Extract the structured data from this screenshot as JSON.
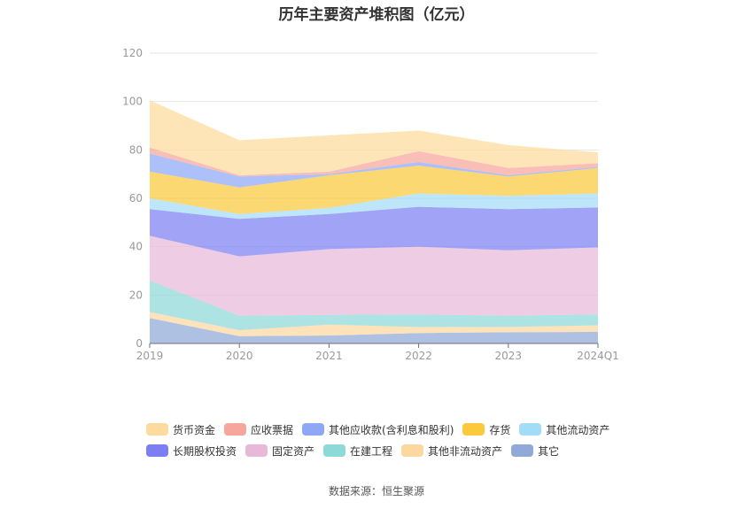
{
  "chart_data": {
    "type": "area",
    "stacked": true,
    "title": "历年主要资产堆积图（亿元）",
    "categories": [
      "2019",
      "2020",
      "2021",
      "2022",
      "2023",
      "2024Q1"
    ],
    "ylim": [
      0,
      120
    ],
    "yticks": [
      0,
      20,
      40,
      60,
      80,
      100,
      120
    ],
    "grid": true,
    "legend_position": "bottom",
    "series": [
      {
        "name": "其它",
        "color": "#8fa9d8",
        "values": [
          10.5,
          3,
          3.3,
          4.3,
          4.6,
          4.8
        ]
      },
      {
        "name": "其他非流动资产",
        "color": "#fdd7a0",
        "values": [
          2.5,
          2.5,
          4.5,
          2.5,
          2.2,
          2.7
        ]
      },
      {
        "name": "在建工程",
        "color": "#8dd8d8",
        "values": [
          13,
          6,
          4,
          5.2,
          4.7,
          4.5
        ]
      },
      {
        "name": "固定资产",
        "color": "#e8b8d8",
        "values": [
          18.5,
          24.5,
          27.2,
          28,
          27,
          27.7
        ]
      },
      {
        "name": "长期股权投资",
        "color": "#7b7ff2",
        "values": [
          11,
          15.5,
          14.5,
          16.5,
          17,
          16.5
        ]
      },
      {
        "name": "其他流动资产",
        "color": "#a3dcf8",
        "values": [
          4.5,
          2,
          2.5,
          5.5,
          5.5,
          5.8
        ]
      },
      {
        "name": "存货",
        "color": "#fbc93c",
        "values": [
          11,
          11,
          13.5,
          11.5,
          8,
          10.5
        ]
      },
      {
        "name": "其他应收款(含利息和股利)",
        "color": "#8ea8f6",
        "values": [
          7.5,
          4.5,
          0.5,
          1.5,
          0.5,
          0.5
        ]
      },
      {
        "name": "应收票据",
        "color": "#f6a69a",
        "values": [
          2.5,
          0.5,
          1,
          4.5,
          3,
          1.5
        ]
      },
      {
        "name": "货币资金",
        "color": "#fedb9c",
        "values": [
          19.5,
          14.5,
          15,
          8.5,
          9.5,
          4.5
        ]
      }
    ]
  },
  "legend_rows": [
    [
      {
        "label": "货币资金",
        "color": "#fedb9c"
      },
      {
        "label": "应收票据",
        "color": "#f6a69a"
      },
      {
        "label": "其他应收款(含利息和股利)",
        "color": "#8ea8f6"
      },
      {
        "label": "存货",
        "color": "#fbc93c"
      },
      {
        "label": "其他流动资产",
        "color": "#a3dcf8"
      }
    ],
    [
      {
        "label": "长期股权投资",
        "color": "#7b7ff2"
      },
      {
        "label": "固定资产",
        "color": "#e8b8d8"
      },
      {
        "label": "在建工程",
        "color": "#8dd8d8"
      },
      {
        "label": "其他非流动资产",
        "color": "#fdd7a0"
      },
      {
        "label": "其它",
        "color": "#8fa9d8"
      }
    ]
  ],
  "source": {
    "label": "数据来源：",
    "value": "恒生聚源"
  }
}
